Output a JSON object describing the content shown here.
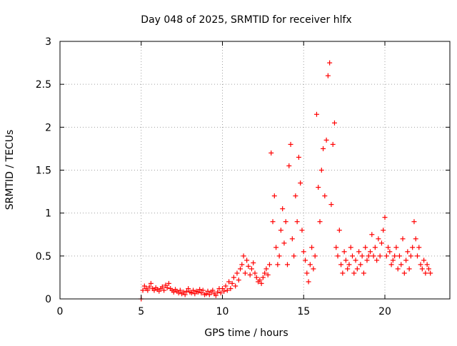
{
  "chart_data": {
    "type": "scatter",
    "title": "Day 048 of 2025, SRMTID for receiver hlfx",
    "xlabel": "GPS time / hours",
    "ylabel": "SRMTID / TECUs",
    "xlim": [
      0,
      24
    ],
    "ylim": [
      0,
      3
    ],
    "grid": true,
    "marker": "plus",
    "series_color": "#ff0000",
    "x_ticks": [
      {
        "value": 0,
        "label": "0"
      },
      {
        "value": 5,
        "label": "5"
      },
      {
        "value": 10,
        "label": "10"
      },
      {
        "value": 15,
        "label": "15"
      },
      {
        "value": 20,
        "label": "20"
      }
    ],
    "y_ticks": [
      {
        "value": 0,
        "label": "0"
      },
      {
        "value": 0.5,
        "label": "0.5"
      },
      {
        "value": 1,
        "label": "1"
      },
      {
        "value": 1.5,
        "label": "1.5"
      },
      {
        "value": 2,
        "label": "2"
      },
      {
        "value": 2.5,
        "label": "2.5"
      },
      {
        "value": 3,
        "label": "3"
      }
    ],
    "series": [
      {
        "name": "SRMTID",
        "x": [
          5.0,
          5.1,
          5.2,
          5.3,
          5.4,
          5.5,
          5.6,
          5.7,
          5.8,
          5.9,
          6.0,
          6.1,
          6.2,
          6.3,
          6.4,
          6.5,
          6.6,
          6.7,
          6.8,
          6.9,
          7.0,
          7.1,
          7.2,
          7.3,
          7.4,
          7.5,
          7.6,
          7.7,
          7.8,
          7.9,
          8.0,
          8.1,
          8.2,
          8.3,
          8.4,
          8.5,
          8.6,
          8.7,
          8.8,
          8.9,
          9.0,
          9.1,
          9.2,
          9.3,
          9.4,
          9.5,
          9.6,
          9.7,
          9.8,
          9.9,
          10.0,
          10.1,
          10.2,
          10.3,
          10.4,
          10.5,
          10.6,
          10.7,
          10.8,
          10.9,
          11.0,
          11.1,
          11.2,
          11.3,
          11.4,
          11.5,
          11.6,
          11.7,
          11.8,
          11.9,
          12.0,
          12.1,
          12.2,
          12.3,
          12.4,
          12.5,
          12.6,
          12.7,
          12.8,
          12.9,
          13.0,
          13.1,
          13.2,
          13.3,
          13.4,
          13.5,
          13.6,
          13.7,
          13.8,
          13.9,
          14.0,
          14.1,
          14.2,
          14.3,
          14.4,
          14.5,
          14.6,
          14.7,
          14.8,
          14.9,
          15.0,
          15.1,
          15.2,
          15.3,
          15.4,
          15.5,
          15.6,
          15.7,
          15.8,
          15.9,
          16.0,
          16.1,
          16.2,
          16.3,
          16.4,
          16.5,
          16.6,
          16.7,
          16.8,
          16.9,
          17.0,
          17.1,
          17.2,
          17.3,
          17.4,
          17.5,
          17.6,
          17.7,
          17.8,
          17.9,
          18.0,
          18.1,
          18.2,
          18.3,
          18.4,
          18.5,
          18.6,
          18.7,
          18.8,
          18.9,
          19.0,
          19.1,
          19.2,
          19.3,
          19.4,
          19.5,
          19.6,
          19.7,
          19.8,
          19.9,
          20.0,
          20.1,
          20.2,
          20.3,
          20.4,
          20.5,
          20.6,
          20.7,
          20.8,
          20.9,
          21.0,
          21.1,
          21.2,
          21.3,
          21.4,
          21.5,
          21.6,
          21.7,
          21.8,
          21.9,
          22.0,
          22.1,
          22.2,
          22.3,
          22.4,
          22.5,
          22.6,
          22.7,
          22.8
        ],
        "y": [
          0.0,
          0.1,
          0.15,
          0.12,
          0.1,
          0.14,
          0.18,
          0.12,
          0.1,
          0.13,
          0.11,
          0.09,
          0.12,
          0.14,
          0.1,
          0.16,
          0.13,
          0.18,
          0.12,
          0.1,
          0.08,
          0.11,
          0.09,
          0.07,
          0.1,
          0.06,
          0.08,
          0.05,
          0.09,
          0.12,
          0.08,
          0.07,
          0.1,
          0.06,
          0.09,
          0.08,
          0.11,
          0.07,
          0.1,
          0.05,
          0.06,
          0.09,
          0.05,
          0.08,
          0.1,
          0.06,
          0.04,
          0.08,
          0.12,
          0.07,
          0.12,
          0.09,
          0.15,
          0.1,
          0.2,
          0.12,
          0.18,
          0.25,
          0.15,
          0.3,
          0.22,
          0.35,
          0.4,
          0.5,
          0.3,
          0.45,
          0.38,
          0.28,
          0.35,
          0.42,
          0.3,
          0.25,
          0.2,
          0.22,
          0.18,
          0.25,
          0.3,
          0.35,
          0.28,
          0.4,
          1.7,
          0.9,
          1.2,
          0.6,
          0.4,
          0.5,
          0.8,
          1.05,
          0.65,
          0.9,
          0.4,
          1.55,
          1.8,
          0.7,
          0.5,
          1.2,
          0.9,
          1.65,
          1.35,
          0.8,
          0.55,
          0.45,
          0.3,
          0.2,
          0.4,
          0.6,
          0.35,
          0.5,
          2.15,
          1.3,
          0.9,
          1.5,
          1.75,
          1.2,
          1.85,
          2.6,
          2.75,
          1.1,
          1.8,
          2.05,
          0.6,
          0.5,
          0.8,
          0.4,
          0.3,
          0.55,
          0.45,
          0.35,
          0.4,
          0.6,
          0.5,
          0.3,
          0.45,
          0.35,
          0.55,
          0.4,
          0.5,
          0.3,
          0.6,
          0.45,
          0.5,
          0.55,
          0.75,
          0.5,
          0.6,
          0.45,
          0.7,
          0.5,
          0.65,
          0.8,
          0.95,
          0.5,
          0.6,
          0.55,
          0.4,
          0.45,
          0.5,
          0.6,
          0.35,
          0.5,
          0.4,
          0.7,
          0.3,
          0.45,
          0.55,
          0.35,
          0.5,
          0.6,
          0.9,
          0.7,
          0.5,
          0.6,
          0.4,
          0.35,
          0.45,
          0.3,
          0.4,
          0.35,
          0.3
        ]
      }
    ]
  }
}
